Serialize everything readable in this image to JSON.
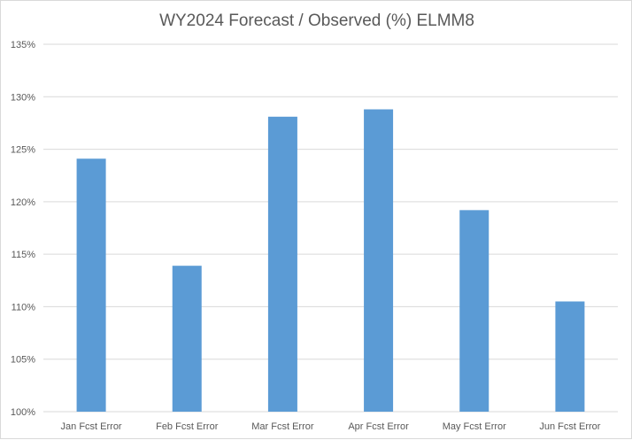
{
  "chart_data": {
    "type": "bar",
    "title": "WY2024 Forecast / Observed (%) ELMM8",
    "categories": [
      "Jan Fcst Error",
      "Feb Fcst Error",
      "Mar Fcst Error",
      "Apr Fcst Error",
      "May Fcst Error",
      "Jun Fcst Error"
    ],
    "values": [
      124.1,
      113.9,
      128.1,
      128.8,
      119.2,
      110.5
    ],
    "ylim": [
      100,
      135
    ],
    "yticks": [
      100,
      105,
      110,
      115,
      120,
      125,
      130,
      135
    ],
    "ytick_labels": [
      "100%",
      "105%",
      "110%",
      "115%",
      "120%",
      "125%",
      "130%",
      "135%"
    ],
    "xlabel": "",
    "ylabel": "",
    "grid": true,
    "legend": "none",
    "bar_color": "#5B9BD5",
    "grid_color": "#d9d9d9",
    "text_color": "#595959"
  }
}
